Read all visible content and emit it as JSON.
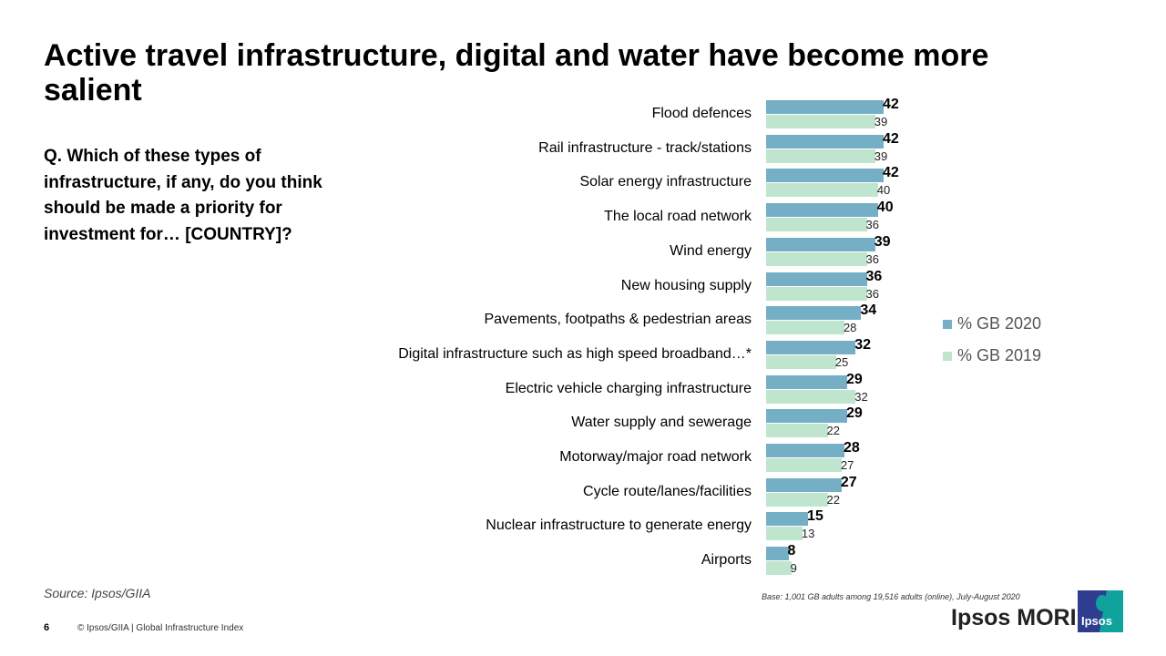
{
  "title": "Active travel infrastructure, digital and water have become more salient",
  "question": "Q. Which of these types of infrastructure, if any, do you think should be made a priority  for investment for… [COUNTRY]?",
  "source": "Source: Ipsos/GIIA",
  "page_number": "6",
  "footer": "© Ipsos/GIIA | Global Infrastructure Index",
  "base_note": "Base: 1,001 GB adults among 19,516 adults (online), July-August 2020",
  "brand": "Ipsos MORI",
  "logo_text": "Ipsos",
  "chart_data": {
    "type": "bar",
    "orientation": "horizontal",
    "categories": [
      "Flood defences",
      "Rail infrastructure - track/stations",
      "Solar energy infrastructure",
      "The local road network",
      "Wind energy",
      "New housing supply",
      "Pavements, footpaths & pedestrian areas",
      "Digital infrastructure such as high speed broadband…*",
      "Electric vehicle charging infrastructure",
      "Water supply and sewerage",
      "Motorway/major road network",
      "Cycle route/lanes/facilities",
      "Nuclear infrastructure to generate energy",
      "Airports"
    ],
    "series": [
      {
        "name": "% GB 2020",
        "color": "#75afc6",
        "values": [
          42,
          42,
          42,
          40,
          39,
          36,
          34,
          32,
          29,
          29,
          28,
          27,
          15,
          8
        ]
      },
      {
        "name": "% GB 2019",
        "color": "#bfe5cf",
        "values": [
          39,
          39,
          40,
          36,
          36,
          36,
          28,
          25,
          32,
          22,
          27,
          22,
          13,
          9
        ]
      }
    ],
    "legend": "right",
    "grid": false
  }
}
